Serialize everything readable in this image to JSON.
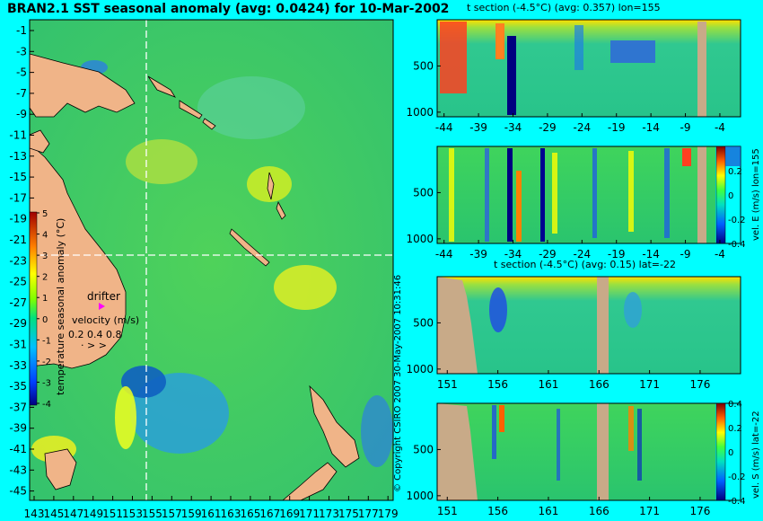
{
  "chart_data": [
    {
      "id": "map",
      "type": "heatmap",
      "title": "BRAN2.1 SST seasonal anomaly (avg: 0.0424) for 10-Mar-2002",
      "x_ticks": [
        "143",
        "145",
        "147",
        "149",
        "151",
        "153",
        "155",
        "157",
        "159",
        "161",
        "163",
        "165",
        "167",
        "169",
        "171",
        "173",
        "175",
        "177",
        "179"
      ],
      "y_ticks": [
        "-1",
        "-3",
        "-5",
        "-7",
        "-9",
        "-11",
        "-13",
        "-15",
        "-17",
        "-19",
        "-21",
        "-23",
        "-25",
        "-27",
        "-29",
        "-31",
        "-33",
        "-35",
        "-37",
        "-39",
        "-41",
        "-43",
        "-45"
      ],
      "xlim": [
        143,
        180
      ],
      "ylim": [
        -45,
        0
      ],
      "crosshair": {
        "lon": 155,
        "lat": -22
      },
      "colorbar": {
        "label": "temperature seasonal anomaly (°C)",
        "ticks": [
          "5",
          "4",
          "3",
          "2",
          "1",
          "0",
          "-1",
          "-2",
          "-3",
          "-4"
        ],
        "range": [
          -4,
          5
        ]
      },
      "annotations": {
        "drifter": "drifter",
        "velocity_label": "velocity (m/s)",
        "velocity_values": "0.2 0.4 0.8"
      }
    },
    {
      "id": "t_section_lon",
      "type": "heatmap",
      "title": "t section (-4.5°C) (avg: 0.357) lon=155",
      "x_ticks": [
        "-44",
        "-39",
        "-34",
        "-29",
        "-24",
        "-19",
        "-14",
        "-9",
        "-4"
      ],
      "y_ticks": [
        "500",
        "1000"
      ],
      "xlim": [
        -45,
        -1
      ],
      "ylim": [
        1050,
        0
      ]
    },
    {
      "id": "vel_e",
      "type": "heatmap",
      "x_ticks": [
        "-44",
        "-39",
        "-34",
        "-29",
        "-24",
        "-19",
        "-14",
        "-9",
        "-4"
      ],
      "y_ticks": [
        "500",
        "1000"
      ],
      "xlim": [
        -45,
        -1
      ],
      "ylim": [
        1050,
        0
      ],
      "colorbar": {
        "label": "vel. E (m/s) lon=155",
        "ticks": [
          "0.2",
          "0",
          "-0.2",
          "-0.4"
        ],
        "range": [
          -0.4,
          0.4
        ]
      }
    },
    {
      "id": "t_section_lat",
      "type": "heatmap",
      "title": "t section (-4.5°C) (avg: 0.15) lat=-22",
      "x_ticks": [
        "151",
        "156",
        "161",
        "166",
        "171",
        "176"
      ],
      "y_ticks": [
        "500",
        "1000"
      ],
      "xlim": [
        150,
        180
      ],
      "ylim": [
        1050,
        0
      ]
    },
    {
      "id": "vel_s",
      "type": "heatmap",
      "x_ticks": [
        "151",
        "156",
        "161",
        "166",
        "171",
        "176"
      ],
      "y_ticks": [
        "500",
        "1000"
      ],
      "xlim": [
        150,
        180
      ],
      "ylim": [
        1050,
        0
      ],
      "colorbar": {
        "label": "vel. S (m/s) lat=-22",
        "ticks": [
          "0.4",
          "0.2",
          "0",
          "-0.2",
          "-0.4"
        ],
        "range": [
          -0.4,
          0.4
        ]
      }
    }
  ],
  "credit": "© Copyright CSIRO 2007  30-May-2007 10:31:46"
}
